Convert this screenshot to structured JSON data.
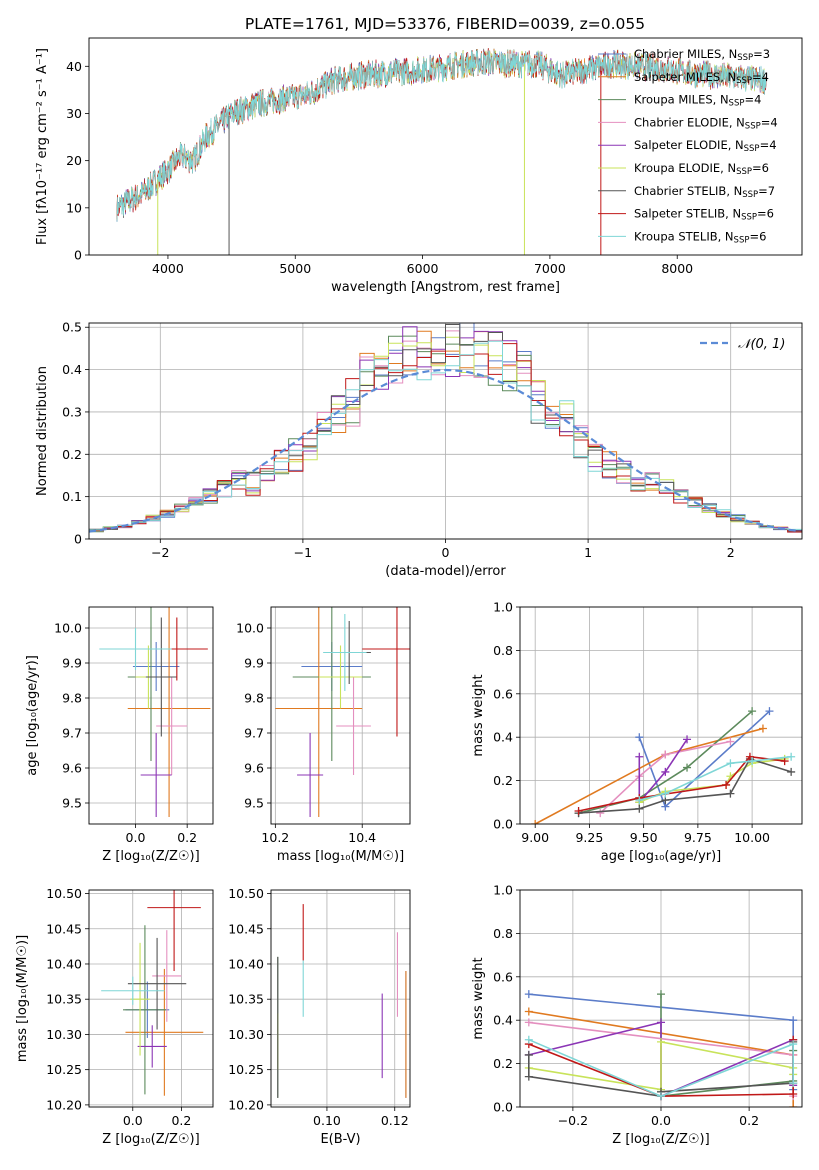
{
  "title": "PLATE=1761, MJD=53376, FIBERID=0039, z=0.055",
  "colors": [
    "#5b7cc9",
    "#e07a20",
    "#5c8a5c",
    "#e48fbf",
    "#8b35b5",
    "#c8e35a",
    "#555555",
    "#c01818",
    "#7fd6d6"
  ],
  "legend_spectrum": [
    {
      "text": "Chabrier MILES, N",
      "sub": "SSP",
      "tail": "=3"
    },
    {
      "text": "Salpeter MILES, N",
      "sub": "SSP",
      "tail": "=4"
    },
    {
      "text": "Kroupa MILES, N",
      "sub": "SSP",
      "tail": "=4"
    },
    {
      "text": "Chabrier ELODIE, N",
      "sub": "SSP",
      "tail": "=4"
    },
    {
      "text": "Salpeter ELODIE, N",
      "sub": "SSP",
      "tail": "=4"
    },
    {
      "text": "Kroupa ELODIE, N",
      "sub": "SSP",
      "tail": "=6"
    },
    {
      "text": "Chabrier STELIB, N",
      "sub": "SSP",
      "tail": "=7"
    },
    {
      "text": "Salpeter STELIB, N",
      "sub": "SSP",
      "tail": "=6"
    },
    {
      "text": "Kroupa STELIB, N",
      "sub": "SSP",
      "tail": "=6"
    }
  ],
  "legend_hist": "𝒩(0, 1)",
  "chart_data": [
    {
      "id": "spectrum",
      "type": "line",
      "xlabel": "wavelength [Angstrom, rest frame]",
      "ylabel": "Flux [fλ10⁻¹⁷ erg cm⁻² s⁻¹ A⁻¹]",
      "xlim": [
        3380,
        8980
      ],
      "ylim": [
        0,
        46
      ],
      "xticks": [
        4000,
        5000,
        6000,
        7000,
        8000
      ],
      "yticks": [
        0,
        10,
        20,
        30,
        40
      ],
      "continuum_x": [
        3600,
        3800,
        4000,
        4100,
        4200,
        4300,
        4500,
        4700,
        4900,
        5100,
        5300,
        5500,
        5700,
        5900,
        6100,
        6300,
        6500,
        6700,
        6900,
        7100,
        7300,
        7500,
        7700,
        7900,
        8100,
        8300,
        8500,
        8700
      ],
      "continuum_y": [
        10,
        13,
        18,
        21,
        20,
        25,
        30,
        32,
        33,
        34,
        37,
        38,
        38.5,
        39,
        39.5,
        40.5,
        41,
        40.5,
        40.5,
        38,
        39.5,
        40.5,
        40,
        39.5,
        38.5,
        38,
        37.5,
        37
      ],
      "spike_lines": [
        {
          "x": 3920,
          "series": 5
        },
        {
          "x": 4480,
          "series": 6
        },
        {
          "x": 6800,
          "series": 5
        },
        {
          "x": 7400,
          "series": 7
        }
      ]
    },
    {
      "id": "histogram",
      "type": "histogram",
      "xlabel": "(data-model)/error",
      "ylabel": "Normed distribution",
      "xlim": [
        -2.5,
        2.5
      ],
      "ylim": [
        0,
        0.51
      ],
      "xticks": [
        -2,
        -1,
        0,
        1,
        2
      ],
      "yticks": [
        0,
        0.1,
        0.2,
        0.3,
        0.4,
        0.5
      ],
      "bin_width": 0.1,
      "reference": {
        "type": "gaussian",
        "mean": 0,
        "sigma": 1
      }
    },
    {
      "id": "age_vs_z",
      "type": "errorbar",
      "xlabel": "Z [log₁₀(Z/Z☉)]",
      "ylabel": "age  [log₁₀(age/yr)]",
      "xlim": [
        -0.18,
        0.3
      ],
      "ylim": [
        9.44,
        10.06
      ],
      "xticks": [
        0.0,
        0.2
      ],
      "yticks": [
        9.5,
        9.6,
        9.7,
        9.8,
        9.9,
        10.0
      ],
      "points": [
        {
          "x": 0.08,
          "xerr": 0.09,
          "y": 9.89,
          "yerr": 0.07,
          "series": 0
        },
        {
          "x": 0.13,
          "xerr": 0.16,
          "y": 9.77,
          "yerr": 0.31,
          "series": 1
        },
        {
          "x": 0.06,
          "xerr": 0.09,
          "y": 9.86,
          "yerr": 0.24,
          "series": 2
        },
        {
          "x": 0.14,
          "xerr": 0.06,
          "y": 9.72,
          "yerr": 0.14,
          "series": 3
        },
        {
          "x": 0.08,
          "xerr": 0.06,
          "y": 9.58,
          "yerr": 0.12,
          "series": 4
        },
        {
          "x": 0.05,
          "xerr": 0.05,
          "y": 9.86,
          "yerr": 0.09,
          "series": 5
        },
        {
          "x": 0.1,
          "xerr": 0.06,
          "y": 9.86,
          "yerr": 0.17,
          "series": 6
        },
        {
          "x": 0.16,
          "xerr": 0.12,
          "y": 9.94,
          "yerr": 0.09,
          "series": 7
        },
        {
          "x": 0.0,
          "xerr": 0.14,
          "y": 9.94,
          "yerr": 0.06,
          "series": 8
        }
      ]
    },
    {
      "id": "age_vs_mass",
      "type": "errorbar",
      "xlabel": "mass [log₁₀(M/M☉)]",
      "ylabel": "",
      "xlim": [
        10.19,
        10.51
      ],
      "ylim": [
        9.44,
        10.06
      ],
      "xticks": [
        10.2,
        10.4
      ],
      "yticks": [
        9.5,
        9.6,
        9.7,
        9.8,
        9.9,
        10.0
      ],
      "points": [
        {
          "x": 10.33,
          "xerr": 0.07,
          "y": 9.89,
          "yerr": 0.07,
          "series": 0
        },
        {
          "x": 10.3,
          "xerr": 0.1,
          "y": 9.77,
          "yerr": 0.31,
          "series": 1
        },
        {
          "x": 10.33,
          "xerr": 0.09,
          "y": 9.86,
          "yerr": 0.24,
          "series": 2
        },
        {
          "x": 10.38,
          "xerr": 0.04,
          "y": 9.72,
          "yerr": 0.14,
          "series": 3
        },
        {
          "x": 10.28,
          "xerr": 0.03,
          "y": 9.58,
          "yerr": 0.12,
          "series": 4
        },
        {
          "x": 10.35,
          "xerr": 0.05,
          "y": 9.86,
          "yerr": 0.09,
          "series": 5
        },
        {
          "x": 10.37,
          "xerr": 0.05,
          "y": 9.93,
          "yerr": 0.09,
          "series": 6
        },
        {
          "x": 10.48,
          "xerr": 0.08,
          "y": 9.94,
          "yerr": 0.25,
          "series": 7
        },
        {
          "x": 10.36,
          "xerr": 0.05,
          "y": 9.93,
          "yerr": 0.11,
          "series": 8
        }
      ]
    },
    {
      "id": "weight_vs_age",
      "type": "line",
      "xlabel": "age  [log₁₀(age/yr)]",
      "ylabel": "mass weight",
      "xlim": [
        8.93,
        10.23
      ],
      "ylim": [
        0,
        1
      ],
      "xticks": [
        9.0,
        9.25,
        9.5,
        9.75,
        10.0
      ],
      "yticks": [
        0,
        0.2,
        0.4,
        0.6,
        0.8,
        1.0
      ],
      "series": [
        {
          "series": 0,
          "x": [
            9.48,
            9.6,
            10.08
          ],
          "y": [
            0.4,
            0.08,
            0.52
          ]
        },
        {
          "series": 1,
          "x": [
            9.0,
            9.6,
            10.05
          ],
          "y": [
            0.0,
            0.32,
            0.44
          ]
        },
        {
          "series": 2,
          "x": [
            9.2,
            9.48,
            9.7,
            10.0
          ],
          "y": [
            0.05,
            0.12,
            0.26,
            0.52
          ]
        },
        {
          "series": 3,
          "x": [
            9.3,
            9.48,
            9.6,
            9.9
          ],
          "y": [
            0.05,
            0.22,
            0.32,
            0.38
          ]
        },
        {
          "series": 4,
          "x": [
            9.48,
            9.48,
            9.6,
            9.7
          ],
          "y": [
            0.31,
            0.1,
            0.24,
            0.39
          ]
        },
        {
          "series": 5,
          "x": [
            9.48,
            9.6,
            9.88,
            9.9,
            10.0,
            10.15
          ],
          "y": [
            0.1,
            0.15,
            0.18,
            0.22,
            0.28,
            0.3
          ]
        },
        {
          "series": 6,
          "x": [
            9.2,
            9.48,
            9.6,
            9.9,
            9.99,
            10.18
          ],
          "y": [
            0.05,
            0.07,
            0.11,
            0.14,
            0.3,
            0.24
          ]
        },
        {
          "series": 7,
          "x": [
            9.2,
            9.48,
            9.88,
            9.99,
            10.15
          ],
          "y": [
            0.06,
            0.12,
            0.18,
            0.31,
            0.29
          ]
        },
        {
          "series": 8,
          "x": [
            9.48,
            9.6,
            9.9,
            10.0,
            10.18
          ],
          "y": [
            0.11,
            0.14,
            0.28,
            0.29,
            0.31
          ]
        }
      ]
    },
    {
      "id": "mass_vs_z",
      "type": "errorbar",
      "xlabel": "Z [log₁₀(Z/Z☉)]",
      "ylabel": "mass [log₁₀(M/M☉)]",
      "xlim": [
        -0.18,
        0.33
      ],
      "ylim": [
        10.197,
        10.505
      ],
      "xticks": [
        0.0,
        0.2
      ],
      "yticks": [
        10.2,
        10.25,
        10.3,
        10.35,
        10.4,
        10.45,
        10.5
      ],
      "points": [
        {
          "x": 0.06,
          "xerr": 0.09,
          "y": 10.335,
          "yerr": 0.04,
          "series": 0
        },
        {
          "x": 0.13,
          "xerr": 0.16,
          "y": 10.303,
          "yerr": 0.09,
          "series": 1
        },
        {
          "x": 0.05,
          "xerr": 0.09,
          "y": 10.335,
          "yerr": 0.12,
          "series": 2
        },
        {
          "x": 0.14,
          "xerr": 0.06,
          "y": 10.383,
          "yerr": 0.065,
          "series": 3
        },
        {
          "x": 0.08,
          "xerr": 0.06,
          "y": 10.283,
          "yerr": 0.03,
          "series": 4
        },
        {
          "x": 0.03,
          "xerr": 0.04,
          "y": 10.35,
          "yerr": 0.08,
          "series": 5
        },
        {
          "x": 0.1,
          "xerr": 0.12,
          "y": 10.372,
          "yerr": 0.065,
          "series": 6
        },
        {
          "x": 0.17,
          "xerr": 0.11,
          "y": 10.48,
          "yerr": 0.09,
          "series": 7
        },
        {
          "x": 0.0,
          "xerr": 0.13,
          "y": 10.362,
          "yerr": 0.02,
          "series": 8
        }
      ]
    },
    {
      "id": "mass_vs_ebv",
      "type": "errorbar",
      "xlabel": "E(B-V)",
      "ylabel": "",
      "xlim": [
        0.0835,
        0.1245
      ],
      "ylim": [
        10.197,
        10.505
      ],
      "xticks": [
        0.1,
        0.12
      ],
      "yticks": [
        10.2,
        10.25,
        10.3,
        10.35,
        10.4,
        10.45,
        10.5
      ],
      "points": [
        {
          "x": 0.1233,
          "yerr": 0.09,
          "y": 10.3,
          "series": 0
        },
        {
          "x": 0.1233,
          "yerr": 0.09,
          "y": 10.3,
          "series": 1
        },
        {
          "x": 0.0855,
          "yerr": 0.1,
          "y": 10.31,
          "series": 2
        },
        {
          "x": 0.1208,
          "yerr": 0.06,
          "y": 10.385,
          "series": 3
        },
        {
          "x": 0.1163,
          "yerr": 0.06,
          "y": 10.298,
          "series": 4
        },
        {
          "x": 0.0855,
          "yerr": 0.04,
          "y": 10.29,
          "series": 5
        },
        {
          "x": 0.0855,
          "yerr": 0.1,
          "y": 10.31,
          "series": 6
        },
        {
          "x": 0.093,
          "yerr": 0.04,
          "y": 10.445,
          "series": 7
        },
        {
          "x": 0.093,
          "yerr": 0.04,
          "y": 10.365,
          "series": 8
        }
      ]
    },
    {
      "id": "weight_vs_z",
      "type": "line",
      "xlabel": "Z [log₁₀(Z/Z☉)]",
      "ylabel": "mass weight",
      "xlim": [
        -0.32,
        0.32
      ],
      "ylim": [
        0,
        1
      ],
      "xticks": [
        -0.2,
        0.0,
        0.2
      ],
      "yticks": [
        0,
        0.2,
        0.4,
        0.6,
        0.8,
        1.0
      ],
      "series": [
        {
          "series": 0,
          "x": [
            -0.3,
            0.3,
            0.3
          ],
          "y": [
            0.52,
            0.4,
            0.08
          ]
        },
        {
          "series": 1,
          "x": [
            -0.3,
            0.3,
            0.3
          ],
          "y": [
            0.44,
            0.24,
            0.0
          ]
        },
        {
          "series": 2,
          "x": [
            0.0,
            0.0,
            0.3,
            0.3
          ],
          "y": [
            0.52,
            0.05,
            0.12,
            0.26
          ]
        },
        {
          "series": 3,
          "x": [
            -0.3,
            0.3,
            0.3
          ],
          "y": [
            0.39,
            0.24,
            0.05
          ]
        },
        {
          "series": 4,
          "x": [
            -0.3,
            0.0,
            0.0,
            0.3,
            0.3
          ],
          "y": [
            0.24,
            0.39,
            0.05,
            0.31,
            0.1
          ]
        },
        {
          "series": 5,
          "x": [
            -0.3,
            0.0,
            0.0,
            0.3,
            0.3
          ],
          "y": [
            0.18,
            0.08,
            0.3,
            0.18,
            0.15
          ]
        },
        {
          "series": 6,
          "x": [
            -0.3,
            -0.3,
            0.0,
            0.0,
            0.3,
            0.3
          ],
          "y": [
            0.24,
            0.14,
            0.05,
            0.07,
            0.11,
            0.3
          ]
        },
        {
          "series": 7,
          "x": [
            -0.3,
            0.0,
            0.3,
            0.3
          ],
          "y": [
            0.29,
            0.05,
            0.06,
            0.31
          ]
        },
        {
          "series": 8,
          "x": [
            -0.3,
            0.0,
            0.3,
            0.3
          ],
          "y": [
            0.31,
            0.05,
            0.29,
            0.11
          ]
        }
      ]
    }
  ]
}
